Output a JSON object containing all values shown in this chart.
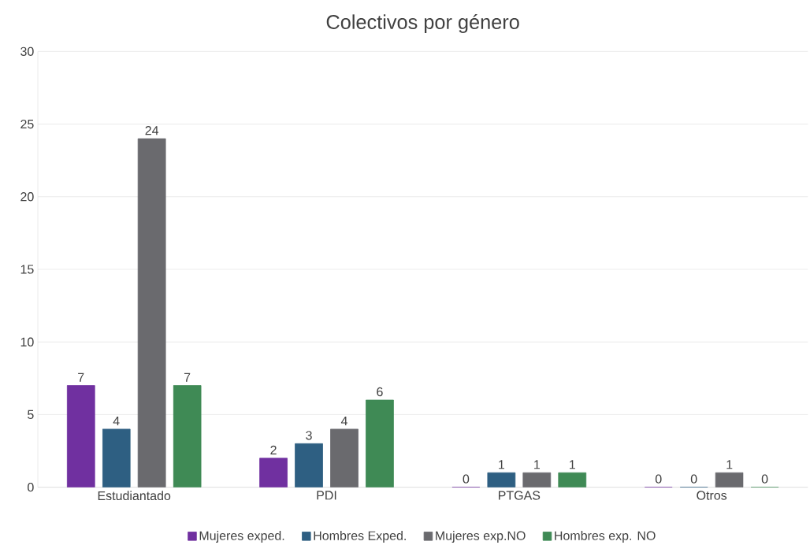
{
  "chart_data": {
    "type": "bar",
    "title": "Colectivos por género",
    "categories": [
      "Estudiantado",
      "PDI",
      "PTGAS",
      "Otros"
    ],
    "series": [
      {
        "name": "Mujeres exped.",
        "color": "#7030a0",
        "values": [
          7,
          2,
          0,
          0
        ]
      },
      {
        "name": "Hombres Exped.",
        "color": "#2e5f82",
        "values": [
          4,
          3,
          1,
          0
        ]
      },
      {
        "name": "Mujeres exp.NO",
        "color": "#6a6a6e",
        "values": [
          24,
          4,
          1,
          1
        ]
      },
      {
        "name": "Hombres exp. NO",
        "color": "#3f8a55",
        "values": [
          7,
          6,
          1,
          0
        ]
      }
    ],
    "ylim": [
      0,
      30
    ],
    "yticks": [
      0,
      5,
      10,
      15,
      20,
      25,
      30
    ],
    "grid": "y",
    "legend": "bottom",
    "data_labels": true
  }
}
